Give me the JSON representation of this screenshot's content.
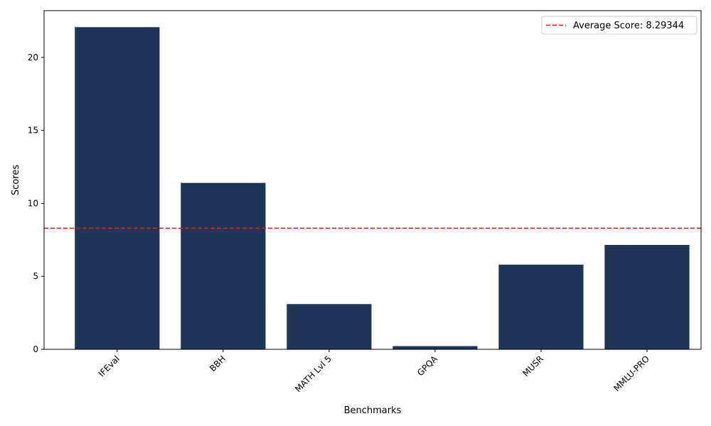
{
  "chart_data": {
    "type": "bar",
    "title": "",
    "xlabel": "Benchmarks",
    "ylabel": "Scores",
    "categories": [
      "IFEval",
      "BBH",
      "MATH Lvl 5",
      "GPQA",
      "MUSR",
      "MMLU-PRO"
    ],
    "values": [
      22.07,
      11.4,
      3.1,
      0.22,
      5.8,
      7.15
    ],
    "ylim": [
      0,
      23.2
    ],
    "yticks": [
      0,
      5,
      10,
      15,
      20
    ],
    "bar_color": "#1f3556",
    "reference_line": {
      "value": 8.29344,
      "label": "Average Score: 8.29344",
      "color": "#e41a1c",
      "style": "dashed"
    },
    "legend_position": "top-right",
    "grid": false
  }
}
